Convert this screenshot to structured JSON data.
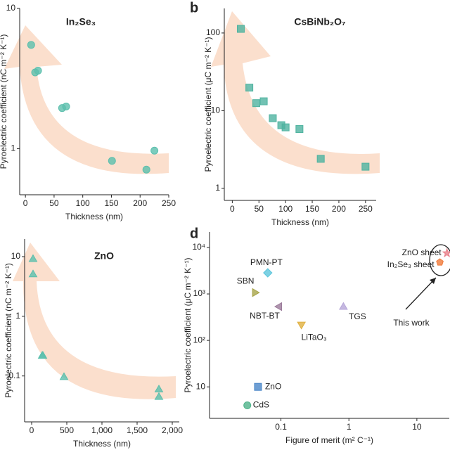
{
  "chart_data": [
    {
      "type": "scatter",
      "title": "In₂Se₃",
      "xlabel": "Thickness (nm)",
      "ylabel": "Pyroelectric coefficient (nC m⁻² K⁻¹)",
      "x": [
        10,
        17,
        22,
        64,
        71,
        151,
        211,
        225
      ],
      "values": [
        5.5,
        3.5,
        3.6,
        1.95,
        2.0,
        0.82,
        0.71,
        0.97
      ],
      "color": "#5bbfad",
      "xlim": [
        -10,
        250
      ],
      "ylim": [
        0.47,
        10
      ],
      "xticks": [
        0,
        50,
        100,
        150,
        200,
        250
      ],
      "yticks": [
        1,
        10
      ],
      "log_y": true,
      "marker": "circle"
    },
    {
      "type": "scatter",
      "panel_label": "b",
      "title": "CsBiNb₂O₇",
      "xlabel": "Thickness (nm)",
      "ylabel": "Pyroelectric coefficient (μC m⁻² K⁻¹)",
      "x": [
        16,
        32,
        45,
        59,
        76,
        92,
        100,
        126,
        166,
        250
      ],
      "values": [
        113,
        19.8,
        12.5,
        13.2,
        8,
        6.5,
        6.1,
        5.8,
        2.4,
        1.9
      ],
      "color": "#4fb3a0",
      "xlim": [
        -15,
        270
      ],
      "ylim": [
        0.7,
        207
      ],
      "xticks": [
        0,
        50,
        100,
        150,
        200,
        250
      ],
      "yticks": [
        1,
        10,
        100
      ],
      "log_y": true,
      "marker": "square"
    },
    {
      "type": "scatter",
      "title": "ZnO",
      "xlabel": "Thickness (nm)",
      "ylabel": "Pyroelectric coefficient (nC m⁻² K⁻¹)",
      "x": [
        20,
        20,
        150,
        160,
        460,
        1810,
        1810
      ],
      "values": [
        9.2,
        5.1,
        0.22,
        0.22,
        0.097,
        0.06,
        0.045
      ],
      "color": "#5bbfad",
      "xlim": [
        -100,
        2100
      ],
      "ylim": [
        0.017,
        19.7
      ],
      "xticks": [
        0,
        500,
        {
          "value": 1000,
          "label": "1,000"
        },
        {
          "value": 1500,
          "label": "1,500"
        },
        {
          "value": 2000,
          "label": "2,000"
        }
      ],
      "yticks": [
        0.1,
        1,
        10
      ],
      "log_y": true,
      "marker": "triangle"
    },
    {
      "type": "scatter",
      "panel_label": "d",
      "xlabel": "Figure of merit (m² C⁻¹)",
      "ylabel": "Pyroelectric coefficient (μC m⁻² K⁻¹)",
      "xlim": [
        0.0089,
        30
      ],
      "ylim": [
        2.1,
        21500
      ],
      "xticks": [
        0.1,
        1,
        10
      ],
      "yticks": [
        10,
        {
          "value": 100,
          "label": "10²"
        },
        {
          "value": 1000,
          "label": "10³"
        },
        {
          "value": 10000,
          "label": "10⁴"
        }
      ],
      "log_x": true,
      "log_y": true,
      "annotation": "This work",
      "series": [
        {
          "name": "PMN-PT",
          "color": "#5cc6dc",
          "marker": "diamond",
          "x": [
            0.064
          ],
          "values": [
            2850
          ]
        },
        {
          "name": "SBN",
          "color": "#a8a54a",
          "marker": "triangle-right",
          "x": [
            0.042
          ],
          "values": [
            1070
          ]
        },
        {
          "name": "NBT-BT",
          "color": "#9b7a9a",
          "marker": "triangle-left",
          "x": [
            0.093
          ],
          "values": [
            535
          ]
        },
        {
          "name": "LiTaO₃",
          "color": "#e0b040",
          "marker": "triangle-down",
          "x": [
            0.2
          ],
          "values": [
            215
          ]
        },
        {
          "name": "TGS",
          "color": "#b6a6d8",
          "marker": "triangle",
          "x": [
            0.83
          ],
          "values": [
            535
          ]
        },
        {
          "name": "ZnO",
          "color": "#4a86c8",
          "marker": "square",
          "x": [
            0.046
          ],
          "values": [
            10
          ]
        },
        {
          "name": "CdS",
          "color": "#4fb38a",
          "marker": "circle",
          "x": [
            0.032
          ],
          "values": [
            4
          ]
        },
        {
          "name": "ZnO sheet",
          "color": "#e8808a",
          "marker": "star",
          "x": [
            27.7
          ],
          "values": [
            7560
          ]
        },
        {
          "name": "In₂Se₃ sheet",
          "color": "#f07a3a",
          "marker": "pentagon",
          "x": [
            21.8
          ],
          "values": [
            4800
          ]
        }
      ]
    }
  ]
}
